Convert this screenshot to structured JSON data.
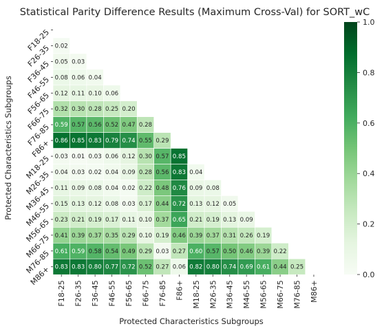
{
  "chart_data": {
    "type": "heatmap",
    "title": "Statistical Parity Difference Results (Maximum Cross-Val) for SORT_wC",
    "xlabel": "Protected Characteristics Subgroups",
    "ylabel": "Protected Characteristics Subgroups",
    "categories": [
      "F18-25",
      "F26-35",
      "F36-45",
      "F46-55",
      "F56-65",
      "F66-75",
      "F76-85",
      "F86+",
      "M18-25",
      "M26-35",
      "M36-45",
      "M46-55",
      "M56-65",
      "M66-75",
      "M76-85",
      "M86+"
    ],
    "mask": "upper-triangle-including-diagonal",
    "values": [
      [],
      [
        "0.02"
      ],
      [
        "0.05",
        "0.03"
      ],
      [
        "0.08",
        "0.06",
        "0.04"
      ],
      [
        "0.12",
        "0.11",
        "0.10",
        "0.06"
      ],
      [
        "0.32",
        "0.30",
        "0.28",
        "0.25",
        "0.20"
      ],
      [
        "0.59",
        "0.57",
        "0.56",
        "0.52",
        "0.47",
        "0.28"
      ],
      [
        "0.86",
        "0.85",
        "0.83",
        "0.79",
        "0.74",
        "0.55",
        "0.29"
      ],
      [
        "0.03",
        "0.01",
        "0.03",
        "0.06",
        "0.12",
        "0.30",
        "0.57",
        "0.85"
      ],
      [
        "0.04",
        "0.03",
        "0.02",
        "0.04",
        "0.09",
        "0.28",
        "0.56",
        "0.83",
        "0.04"
      ],
      [
        "0.11",
        "0.09",
        "0.08",
        "0.04",
        "0.02",
        "0.22",
        "0.48",
        "0.76",
        "0.09",
        "0.08"
      ],
      [
        "0.15",
        "0.13",
        "0.12",
        "0.08",
        "0.03",
        "0.17",
        "0.44",
        "0.72",
        "0.13",
        "0.12",
        "0.05"
      ],
      [
        "0.23",
        "0.21",
        "0.19",
        "0.17",
        "0.11",
        "0.10",
        "0.37",
        "0.65",
        "0.21",
        "0.19",
        "0.13",
        "0.09"
      ],
      [
        "0.41",
        "0.39",
        "0.37",
        "0.35",
        "0.29",
        "0.10",
        "0.19",
        "0.46",
        "0.39",
        "0.37",
        "0.31",
        "0.26",
        "0.19"
      ],
      [
        "0.61",
        "0.59",
        "0.58",
        "0.54",
        "0.49",
        "0.29",
        "0.03",
        "0.27",
        "0.60",
        "0.57",
        "0.50",
        "0.46",
        "0.39",
        "0.22"
      ],
      [
        "0.83",
        "0.83",
        "0.80",
        "0.77",
        "0.72",
        "0.52",
        "0.27",
        "0.06",
        "0.82",
        "0.80",
        "0.74",
        "0.69",
        "0.61",
        "0.44",
        "0.25"
      ]
    ],
    "colorbar": {
      "colormap": "Greens",
      "range": [
        0.0,
        1.0
      ],
      "ticks": [
        "0.0",
        "0.2",
        "0.4",
        "0.6",
        "0.8",
        "1.0"
      ]
    },
    "colors": {
      "low": "#f7fcf5",
      "high": "#00441b",
      "cell_border": "#ffffff"
    }
  }
}
